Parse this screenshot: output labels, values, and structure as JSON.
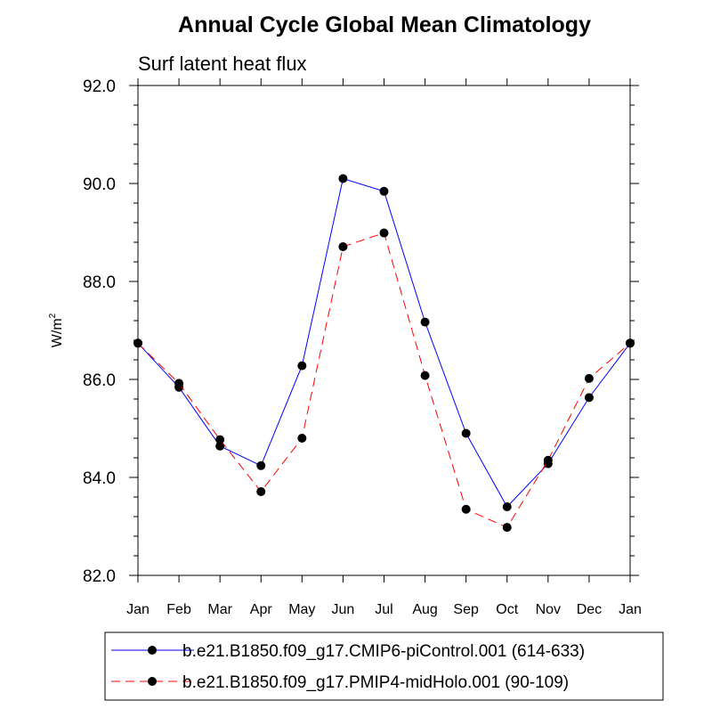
{
  "chart_data": {
    "type": "line",
    "title": "Annual Cycle Global Mean Climatology",
    "subtitle": "Surf latent heat flux",
    "ylabel_base": "W/m",
    "ylabel_sup": "2",
    "categories": [
      "Jan",
      "Feb",
      "Mar",
      "Apr",
      "May",
      "Jun",
      "Jul",
      "Aug",
      "Sep",
      "Oct",
      "Nov",
      "Dec",
      "Jan"
    ],
    "ylim": [
      82.0,
      92.0
    ],
    "yticks": [
      82.0,
      84.0,
      86.0,
      88.0,
      90.0,
      92.0
    ],
    "ytick_labels": [
      "82.0",
      "84.0",
      "86.0",
      "88.0",
      "90.0",
      "92.0"
    ],
    "series": [
      {
        "name": "b.e21.B1850.f09_g17.CMIP6-piControl.001 (614-633)",
        "color": "#0000ff",
        "style": "solid",
        "values": [
          86.74,
          85.84,
          84.64,
          84.24,
          86.28,
          90.1,
          89.84,
          87.17,
          84.9,
          83.4,
          84.28,
          85.63,
          86.74
        ]
      },
      {
        "name": "b.e21.B1850.f09_g17.PMIP4-midHolo.001 (90-109)",
        "color": "#ff0000",
        "style": "dashed",
        "values": [
          86.74,
          85.92,
          84.77,
          83.71,
          84.8,
          88.71,
          88.99,
          86.08,
          83.35,
          82.98,
          84.35,
          86.02,
          86.74
        ]
      }
    ]
  }
}
